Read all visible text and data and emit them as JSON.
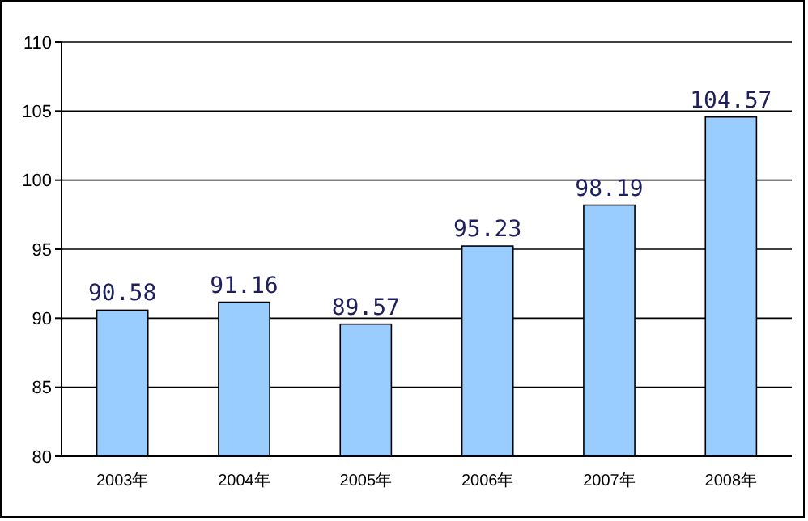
{
  "chart_data": {
    "type": "bar",
    "categories": [
      "2003年",
      "2004年",
      "2005年",
      "2006年",
      "2007年",
      "2008年"
    ],
    "values": [
      90.58,
      91.16,
      89.57,
      95.23,
      98.19,
      104.57
    ],
    "color": "#99ccff",
    "ylim": [
      80,
      110
    ],
    "yticks": [
      80,
      85,
      90,
      95,
      100,
      105,
      110
    ],
    "grid": "y",
    "data_labels": true
  }
}
